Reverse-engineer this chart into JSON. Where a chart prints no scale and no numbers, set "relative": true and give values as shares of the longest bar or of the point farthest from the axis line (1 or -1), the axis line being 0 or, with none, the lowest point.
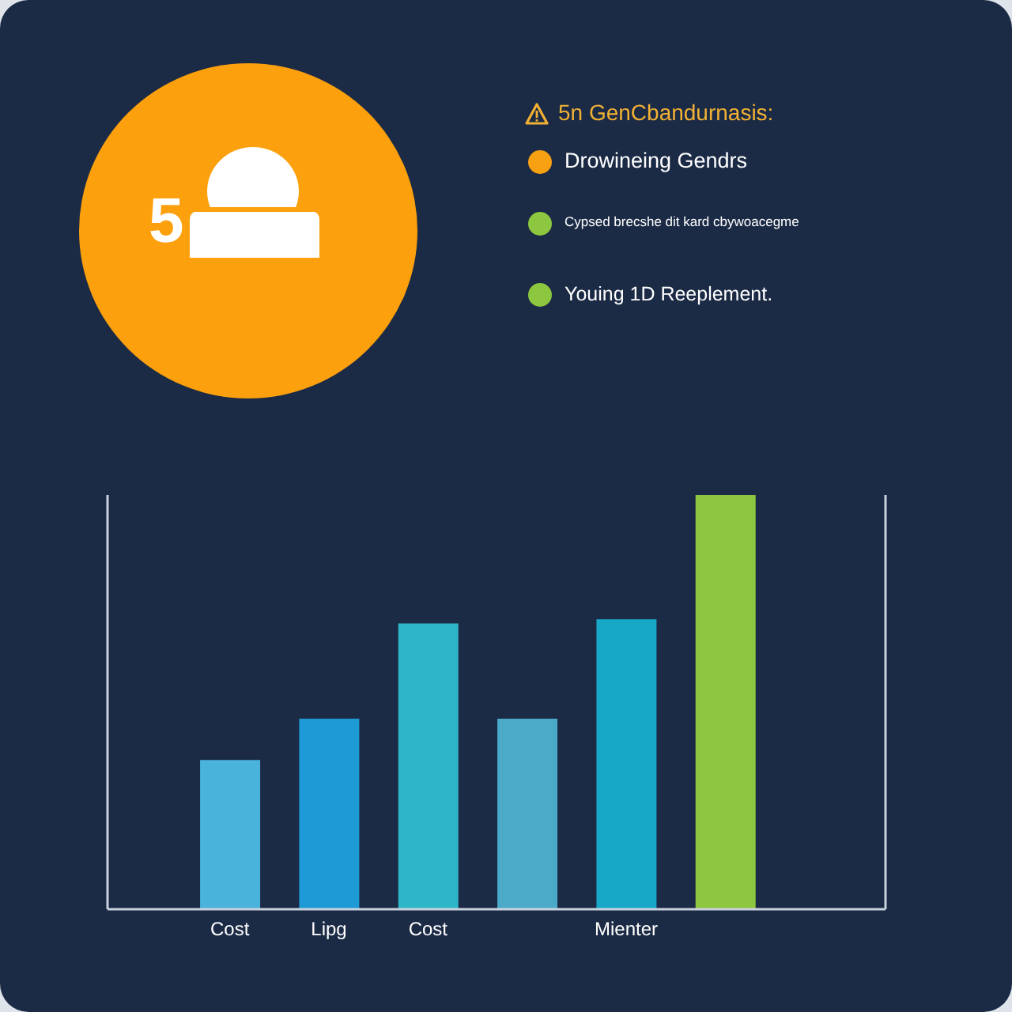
{
  "chart_data": {
    "type": "bar",
    "title": "5n GenCbandurnasis:",
    "categories": [
      "Cost",
      "Lipg",
      "Cost",
      null,
      "Mienter",
      null
    ],
    "values": [
      0.36,
      0.46,
      0.69,
      0.46,
      0.7,
      1
    ],
    "colors": [
      "#4ab3dc",
      "#1e9ad6",
      "#2fb5c8",
      "#4aaac8",
      "#17a8c8",
      "#8dc63f"
    ],
    "relative": true,
    "annotations": [
      "5",
      "Drowineing Gendrs",
      "Cypsed brecshe dit kard cbywoacegme",
      "Youing 1D Reeplement."
    ]
  }
}
